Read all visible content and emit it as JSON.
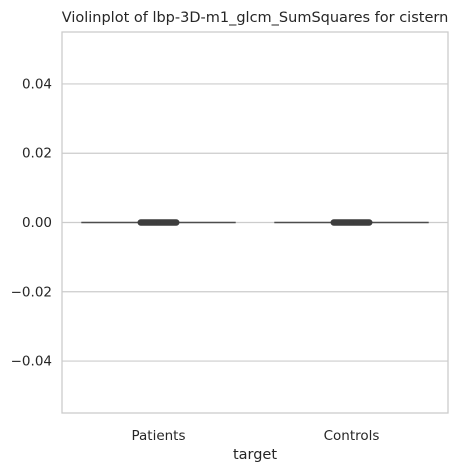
{
  "chart_data": {
    "type": "violin",
    "title": "Violinplot of lbp-3D-m1_glcm_SumSquares for cistern",
    "xlabel": "target",
    "ylabel": "",
    "categories": [
      "Patients",
      "Controls"
    ],
    "values": [
      0.0,
      0.0
    ],
    "ylim": [
      -0.055,
      0.055
    ],
    "yticks": [
      0.04,
      0.02,
      0.0,
      -0.02,
      -0.04
    ],
    "ytick_labels": [
      "0.04",
      "0.02",
      "0.00",
      "−0.02",
      "−0.04"
    ],
    "grid": "horizontal",
    "colors": {
      "grid": "#cccccc",
      "frame": "#cccccc",
      "violin_line": "#4d4d4d",
      "box": "#3d3d3d"
    }
  }
}
